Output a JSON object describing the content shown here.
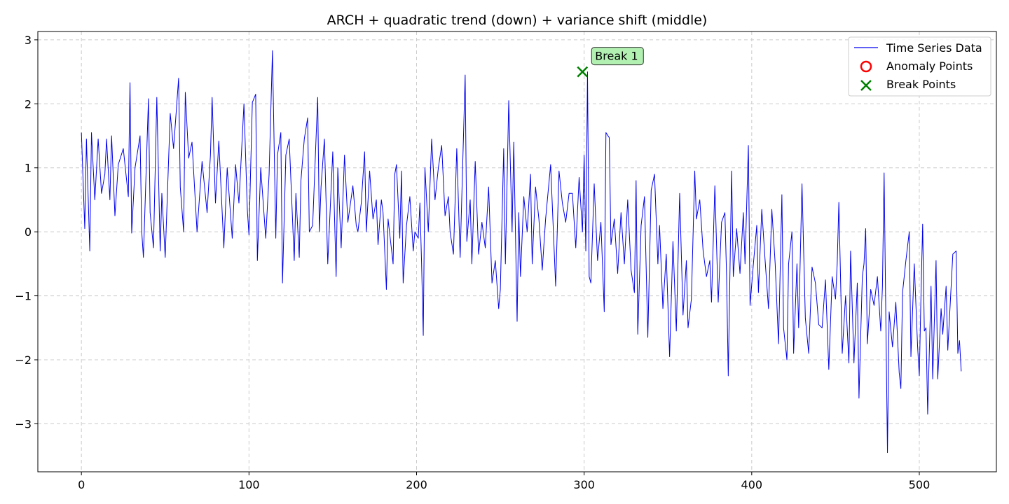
{
  "chart_data": {
    "type": "line",
    "title": "ARCH + quadratic trend (down) + variance shift (middle)",
    "xlabel": "",
    "ylabel": "",
    "xlim": [
      -26,
      546
    ],
    "ylim": [
      -3.75,
      3.13
    ],
    "xticks": [
      0,
      100,
      200,
      300,
      400,
      500
    ],
    "yticks": [
      -3,
      -2,
      -1,
      0,
      1,
      2,
      3
    ],
    "xtick_labels": [
      "0",
      "100",
      "200",
      "300",
      "400",
      "500"
    ],
    "ytick_labels": [
      "−3",
      "−2",
      "−1",
      "0",
      "1",
      "2",
      "3"
    ],
    "grid": true,
    "legend": {
      "placement": "top-right",
      "entries": [
        "Time Series Data",
        "Anomaly Points",
        "Break Points"
      ]
    },
    "colors": {
      "series": "#0000ee",
      "anomaly": "#ff0000",
      "break": "#008000",
      "annotation_bg": "#b2f0b2",
      "grid": "#cccccc"
    },
    "series": [
      {
        "name": "Time Series Data",
        "x_start": 0,
        "x_step": 1,
        "anchors": [
          [
            0,
            1.55
          ],
          [
            2,
            0.05
          ],
          [
            3,
            1.45
          ],
          [
            5,
            -0.3
          ],
          [
            6,
            1.55
          ],
          [
            8,
            0.5
          ],
          [
            10,
            1.45
          ],
          [
            12,
            0.6
          ],
          [
            14,
            0.9
          ],
          [
            15,
            1.45
          ],
          [
            17,
            0.5
          ],
          [
            18,
            1.5
          ],
          [
            20,
            0.25
          ],
          [
            22,
            1.05
          ],
          [
            25,
            1.3
          ],
          [
            28,
            0.55
          ],
          [
            29,
            2.33
          ],
          [
            30,
            -0.02
          ],
          [
            32,
            1.0
          ],
          [
            35,
            1.5
          ],
          [
            36,
            0.0
          ],
          [
            37,
            -0.4
          ],
          [
            40,
            2.08
          ],
          [
            41,
            0.3
          ],
          [
            43,
            -0.25
          ],
          [
            45,
            2.1
          ],
          [
            47,
            -0.3
          ],
          [
            48,
            0.6
          ],
          [
            50,
            -0.4
          ],
          [
            53,
            1.85
          ],
          [
            55,
            1.3
          ],
          [
            58,
            2.4
          ],
          [
            59,
            0.7
          ],
          [
            61,
            0.0
          ],
          [
            62,
            2.18
          ],
          [
            64,
            1.15
          ],
          [
            66,
            1.4
          ],
          [
            69,
            0.0
          ],
          [
            72,
            1.1
          ],
          [
            75,
            0.3
          ],
          [
            77,
            1.2
          ],
          [
            78,
            2.1
          ],
          [
            80,
            0.45
          ],
          [
            82,
            1.42
          ],
          [
            85,
            -0.25
          ],
          [
            87,
            1.0
          ],
          [
            90,
            -0.1
          ],
          [
            92,
            1.05
          ],
          [
            94,
            0.45
          ],
          [
            97,
            2.0
          ],
          [
            99,
            0.35
          ],
          [
            100,
            -0.05
          ],
          [
            102,
            2.02
          ],
          [
            104,
            2.15
          ],
          [
            105,
            -0.45
          ],
          [
            107,
            1.0
          ],
          [
            110,
            -0.1
          ],
          [
            112,
            0.9
          ],
          [
            114,
            2.83
          ],
          [
            116,
            -0.1
          ],
          [
            117,
            1.2
          ],
          [
            119,
            1.55
          ],
          [
            120,
            -0.8
          ],
          [
            122,
            1.2
          ],
          [
            124,
            1.45
          ],
          [
            127,
            -0.45
          ],
          [
            128,
            0.6
          ],
          [
            130,
            -0.4
          ],
          [
            131,
            0.8
          ],
          [
            133,
            1.45
          ],
          [
            135,
            1.78
          ],
          [
            136,
            0.0
          ],
          [
            138,
            0.1
          ],
          [
            140,
            1.45
          ],
          [
            141,
            2.1
          ],
          [
            142,
            0.0
          ],
          [
            143,
            0.7
          ],
          [
            145,
            1.45
          ],
          [
            147,
            -0.5
          ],
          [
            150,
            1.25
          ],
          [
            152,
            -0.7
          ],
          [
            153,
            1.0
          ],
          [
            155,
            -0.25
          ],
          [
            157,
            1.2
          ],
          [
            159,
            0.15
          ],
          [
            162,
            0.72
          ],
          [
            164,
            0.1
          ],
          [
            165,
            0.0
          ],
          [
            167,
            0.45
          ],
          [
            169,
            1.25
          ],
          [
            170,
            0.0
          ],
          [
            172,
            0.95
          ],
          [
            174,
            0.2
          ],
          [
            176,
            0.5
          ],
          [
            177,
            -0.2
          ],
          [
            179,
            0.5
          ],
          [
            180,
            0.3
          ],
          [
            182,
            -0.9
          ],
          [
            183,
            0.2
          ],
          [
            186,
            -0.5
          ],
          [
            187,
            0.9
          ],
          [
            188,
            1.05
          ],
          [
            190,
            -0.1
          ],
          [
            191,
            0.95
          ],
          [
            192,
            -0.8
          ],
          [
            194,
            0.1
          ],
          [
            196,
            0.55
          ],
          [
            198,
            -0.3
          ],
          [
            199,
            0.0
          ],
          [
            201,
            -0.1
          ],
          [
            202,
            0.45
          ],
          [
            203,
            -0.5
          ],
          [
            204,
            -1.62
          ],
          [
            205,
            1.0
          ],
          [
            207,
            0.0
          ],
          [
            209,
            1.45
          ],
          [
            211,
            0.5
          ],
          [
            213,
            1.0
          ],
          [
            215,
            1.35
          ],
          [
            217,
            0.25
          ],
          [
            219,
            0.55
          ],
          [
            220,
            0.0
          ],
          [
            222,
            -0.35
          ],
          [
            224,
            1.3
          ],
          [
            226,
            -0.4
          ],
          [
            228,
            1.5
          ],
          [
            229,
            2.45
          ],
          [
            230,
            -0.15
          ],
          [
            232,
            0.5
          ],
          [
            233,
            -0.5
          ],
          [
            235,
            1.1
          ],
          [
            237,
            -0.35
          ],
          [
            239,
            0.15
          ],
          [
            241,
            -0.25
          ],
          [
            243,
            0.7
          ],
          [
            245,
            -0.8
          ],
          [
            247,
            -0.45
          ],
          [
            249,
            -1.2
          ],
          [
            250,
            -0.9
          ],
          [
            252,
            1.3
          ],
          [
            253,
            -0.5
          ],
          [
            255,
            2.05
          ],
          [
            257,
            0.0
          ],
          [
            258,
            1.4
          ],
          [
            260,
            -1.4
          ],
          [
            261,
            0.3
          ],
          [
            262,
            -0.7
          ],
          [
            264,
            0.55
          ],
          [
            266,
            0.0
          ],
          [
            268,
            0.9
          ],
          [
            269,
            -0.5
          ],
          [
            271,
            0.7
          ],
          [
            273,
            0.2
          ],
          [
            275,
            -0.6
          ],
          [
            277,
            0.2
          ],
          [
            280,
            1.05
          ],
          [
            283,
            -0.85
          ],
          [
            285,
            0.95
          ],
          [
            287,
            0.45
          ],
          [
            289,
            0.15
          ],
          [
            291,
            0.6
          ],
          [
            293,
            0.6
          ],
          [
            295,
            -0.25
          ],
          [
            297,
            0.85
          ],
          [
            299,
            0.0
          ],
          [
            300,
            1.2
          ],
          [
            301,
            -0.3
          ],
          [
            302,
            2.5
          ],
          [
            303,
            -0.7
          ],
          [
            304,
            -0.8
          ],
          [
            306,
            0.75
          ],
          [
            308,
            -0.45
          ],
          [
            310,
            0.15
          ],
          [
            312,
            -1.25
          ],
          [
            313,
            1.55
          ],
          [
            315,
            1.47
          ],
          [
            316,
            -0.2
          ],
          [
            318,
            0.2
          ],
          [
            320,
            -0.65
          ],
          [
            322,
            0.3
          ],
          [
            324,
            -0.5
          ],
          [
            326,
            0.5
          ],
          [
            328,
            -0.6
          ],
          [
            330,
            -0.95
          ],
          [
            331,
            0.8
          ],
          [
            332,
            -1.6
          ],
          [
            334,
            0.1
          ],
          [
            336,
            0.55
          ],
          [
            338,
            -1.65
          ],
          [
            340,
            0.65
          ],
          [
            342,
            0.9
          ],
          [
            344,
            -0.5
          ],
          [
            345,
            0.1
          ],
          [
            347,
            -1.2
          ],
          [
            349,
            -0.35
          ],
          [
            351,
            -1.95
          ],
          [
            353,
            -0.15
          ],
          [
            355,
            -1.55
          ],
          [
            357,
            0.6
          ],
          [
            359,
            -1.3
          ],
          [
            361,
            -0.45
          ],
          [
            362,
            -1.5
          ],
          [
            364,
            -1.05
          ],
          [
            366,
            0.95
          ],
          [
            367,
            0.2
          ],
          [
            369,
            0.5
          ],
          [
            371,
            -0.3
          ],
          [
            373,
            -0.7
          ],
          [
            375,
            -0.45
          ],
          [
            376,
            -1.1
          ],
          [
            378,
            0.72
          ],
          [
            380,
            -1.1
          ],
          [
            382,
            0.15
          ],
          [
            384,
            0.3
          ],
          [
            385,
            -0.7
          ],
          [
            386,
            -2.25
          ],
          [
            388,
            0.95
          ],
          [
            389,
            -0.7
          ],
          [
            391,
            0.05
          ],
          [
            393,
            -0.65
          ],
          [
            395,
            0.3
          ],
          [
            396,
            -0.5
          ],
          [
            398,
            1.35
          ],
          [
            399,
            -1.15
          ],
          [
            401,
            -0.5
          ],
          [
            403,
            0.1
          ],
          [
            404,
            -0.95
          ],
          [
            406,
            0.35
          ],
          [
            408,
            -0.45
          ],
          [
            410,
            -1.2
          ],
          [
            412,
            0.35
          ],
          [
            414,
            -0.5
          ],
          [
            416,
            -1.75
          ],
          [
            418,
            0.58
          ],
          [
            419,
            -1.5
          ],
          [
            421,
            -2.0
          ],
          [
            422,
            -0.5
          ],
          [
            424,
            0.0
          ],
          [
            425,
            -1.9
          ],
          [
            427,
            -0.5
          ],
          [
            428,
            -1.5
          ],
          [
            430,
            0.75
          ],
          [
            432,
            -1.35
          ],
          [
            434,
            -1.9
          ],
          [
            436,
            -0.55
          ],
          [
            438,
            -0.8
          ],
          [
            440,
            -1.45
          ],
          [
            442,
            -1.5
          ],
          [
            444,
            -0.75
          ],
          [
            446,
            -2.15
          ],
          [
            448,
            -0.7
          ],
          [
            450,
            -1.05
          ],
          [
            451,
            -0.5
          ],
          [
            452,
            0.46
          ],
          [
            454,
            -1.9
          ],
          [
            456,
            -1.0
          ],
          [
            458,
            -2.05
          ],
          [
            459,
            -0.3
          ],
          [
            461,
            -2.05
          ],
          [
            463,
            -0.8
          ],
          [
            464,
            -2.6
          ],
          [
            466,
            -0.7
          ],
          [
            467,
            -0.5
          ],
          [
            468,
            0.05
          ],
          [
            469,
            -1.75
          ],
          [
            471,
            -0.9
          ],
          [
            473,
            -1.15
          ],
          [
            475,
            -0.7
          ],
          [
            477,
            -1.55
          ],
          [
            478,
            -0.85
          ],
          [
            479,
            0.92
          ],
          [
            481,
            -3.45
          ],
          [
            482,
            -1.25
          ],
          [
            484,
            -1.8
          ],
          [
            486,
            -1.1
          ],
          [
            488,
            -2.2
          ],
          [
            489,
            -2.45
          ],
          [
            490,
            -0.95
          ],
          [
            492,
            -0.45
          ],
          [
            494,
            0.0
          ],
          [
            495,
            -1.95
          ],
          [
            497,
            -0.5
          ],
          [
            499,
            -1.8
          ],
          [
            500,
            -2.25
          ],
          [
            501,
            -1.0
          ],
          [
            502,
            0.12
          ],
          [
            503,
            -1.55
          ],
          [
            504,
            -1.5
          ],
          [
            505,
            -2.85
          ],
          [
            507,
            -0.85
          ],
          [
            508,
            -2.3
          ],
          [
            510,
            -0.45
          ],
          [
            511,
            -2.3
          ],
          [
            513,
            -1.2
          ],
          [
            514,
            -1.6
          ],
          [
            516,
            -0.85
          ],
          [
            517,
            -1.85
          ],
          [
            519,
            -0.85
          ],
          [
            520,
            -0.35
          ],
          [
            522,
            -0.3
          ],
          [
            523,
            -1.9
          ],
          [
            524,
            -1.7
          ],
          [
            525,
            -2.18
          ]
        ]
      }
    ],
    "anomaly_points": [],
    "break_points": [
      {
        "x": 299,
        "y": 2.5,
        "label": "Break 1"
      }
    ]
  }
}
